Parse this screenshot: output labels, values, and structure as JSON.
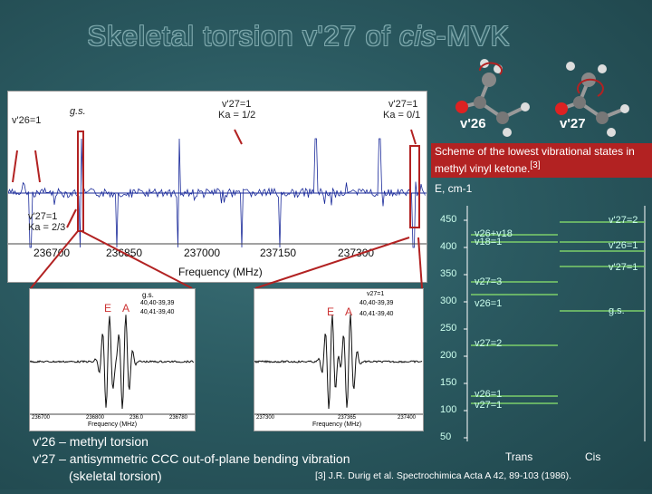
{
  "title": {
    "pre": "Skeletal torsion v'27 of ",
    "italic": "cis",
    "post": "-MVK"
  },
  "spectrum": {
    "labels": {
      "v26": "v'26=1",
      "gs": "g.s.",
      "v27_ka12": "v'27=1",
      "ka12": "Ka = 1/2",
      "v27_ka01": "v'27=1",
      "ka01": "Ka = 0/1",
      "v27_ka23": "v'27=1",
      "ka23": "Ka = 2/3"
    },
    "ticks": [
      "236700",
      "236850",
      "237000",
      "237150",
      "237300"
    ],
    "xlabel": "Frequency (MHz)"
  },
  "inset_left": {
    "E": "E",
    "A": "A",
    "legend_title": "g.s.",
    "legend1": "40,40-39,39",
    "legend2": "40,41-39,40",
    "ticks": [
      "236700",
      "236800",
      "236.0",
      "236780"
    ],
    "xlabel": "Frequency (MHz)"
  },
  "inset_right": {
    "E": "E",
    "A": "A",
    "legend_title": "v27=1",
    "legend1": "40,40-39,39",
    "legend2": "40,41-39,40",
    "ticks": [
      "237300",
      "237365",
      "237400"
    ],
    "xlabel": "Frequency (MHz)"
  },
  "molecules": {
    "m26": "v'26",
    "m27": "v'27"
  },
  "scheme_note": "Scheme of the lowest vibrational states in methyl vinyl ketone.",
  "scheme_ref": "[3]",
  "energy": {
    "axis_label": "E, cm-1",
    "ticks": [
      "450",
      "400",
      "350",
      "300",
      "250",
      "200",
      "150",
      "100",
      "50"
    ],
    "trans": "Trans",
    "cis": "Cis",
    "trans_states": [
      "v26+v18",
      "v18=1",
      "v27=3",
      "v26=1",
      "v27=2",
      "v26=1",
      "v27=1"
    ],
    "cis_states": [
      "v'27=2",
      "v'26=1",
      "v'27=1",
      "g.s."
    ]
  },
  "bottom": {
    "line1": "v'26 – methyl torsion",
    "line2": "v'27 – antisymmetric CCC out-of-plane bending vibration",
    "line3": "(skeletal torsion)",
    "reference": "[3] J.R. Durig et al. Spectrochimica Acta A 42, 89-103 (1986)."
  },
  "colors": {
    "spectrum": "#1a2a9a",
    "marker": "#b22222",
    "level": "#7ccf6a"
  }
}
